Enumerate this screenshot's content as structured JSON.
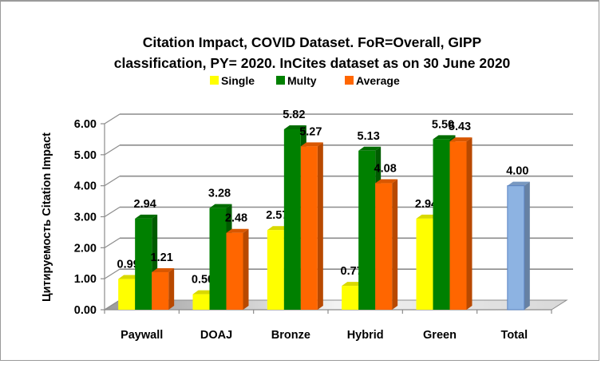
{
  "chart_data": {
    "type": "bar",
    "title_lines": [
      "Citation Impact, COVID Dataset. FoR=Overall, GIPP",
      "classification, PY= 2020. InCites dataset as on 30 June 2020"
    ],
    "title": "Citation Impact, COVID Dataset. FoR=Overall, GIPP classification, PY= 2020. InCites dataset as on 30 June 2020",
    "xlabel": "",
    "ylabel": "Цитируемость Citation Impact",
    "ylim": [
      0,
      6
    ],
    "yticks": [
      "0.00",
      "1.00",
      "2.00",
      "3.00",
      "4.00",
      "5.00",
      "6.00"
    ],
    "grid": true,
    "legend_position": "top-center",
    "categories": [
      "Paywall",
      "DOAJ",
      "Bronze",
      "Hybrid",
      "Green",
      "Total"
    ],
    "series": [
      {
        "name": "Single",
        "color": "#ffff00",
        "values": [
          0.99,
          0.5,
          2.57,
          0.77,
          2.94,
          null
        ],
        "labels": [
          "0.99",
          "0.50",
          "2.57",
          "0.77",
          "2.94",
          ""
        ]
      },
      {
        "name": "Multy",
        "color": "#008000",
        "values": [
          2.94,
          3.28,
          5.82,
          5.13,
          5.5,
          null
        ],
        "labels": [
          "2.94",
          "3.28",
          "5.82",
          "5.13",
          "5.50",
          ""
        ]
      },
      {
        "name": "Average",
        "color": "#ff6600",
        "values": [
          1.21,
          2.48,
          5.27,
          4.08,
          5.43,
          null
        ],
        "labels": [
          "1.21",
          "2.48",
          "5.27",
          "4.08",
          "5.43",
          ""
        ]
      },
      {
        "name": "Total",
        "color": "#8db3e2",
        "values": [
          null,
          null,
          null,
          null,
          null,
          4.0
        ],
        "labels": [
          "",
          "",
          "",
          "",
          "",
          "4.00"
        ],
        "in_legend": false
      }
    ]
  }
}
